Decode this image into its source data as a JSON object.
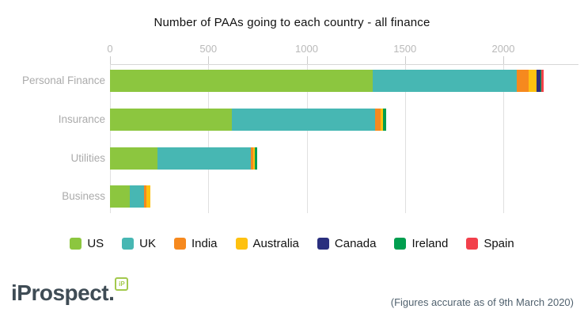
{
  "title": "Number of PAAs going to each country - all finance",
  "footnote": "(Figures accurate as of 9th March 2020)",
  "logo": {
    "text": "iProspect.",
    "mark": "iP"
  },
  "chart_data": {
    "type": "bar",
    "stacked": true,
    "orientation": "horizontal",
    "title": "Number of PAAs going to each country - all finance",
    "categories": [
      "Personal Finance",
      "Insurance",
      "Utilities",
      "Business"
    ],
    "series": [
      {
        "name": "US",
        "color": "#8cc63f",
        "values": [
          1335,
          620,
          240,
          100
        ]
      },
      {
        "name": "UK",
        "color": "#47b7b3",
        "values": [
          735,
          730,
          475,
          75
        ]
      },
      {
        "name": "India",
        "color": "#f6891e",
        "values": [
          60,
          25,
          15,
          10
        ]
      },
      {
        "name": "Australia",
        "color": "#fec110",
        "values": [
          40,
          15,
          5,
          22
        ]
      },
      {
        "name": "Canada",
        "color": "#2a2f7e",
        "values": [
          20,
          0,
          0,
          0
        ]
      },
      {
        "name": "Ireland",
        "color": "#009e4f",
        "values": [
          5,
          15,
          12,
          0
        ]
      },
      {
        "name": "Spain",
        "color": "#f2404b",
        "values": [
          10,
          0,
          0,
          0
        ]
      }
    ],
    "totals": [
      2205,
      1405,
      747,
      207
    ],
    "xlim": [
      0,
      2200
    ],
    "x_ticks": [
      0,
      500,
      1000,
      1500,
      2000
    ],
    "grid": true,
    "legend_position": "bottom"
  }
}
